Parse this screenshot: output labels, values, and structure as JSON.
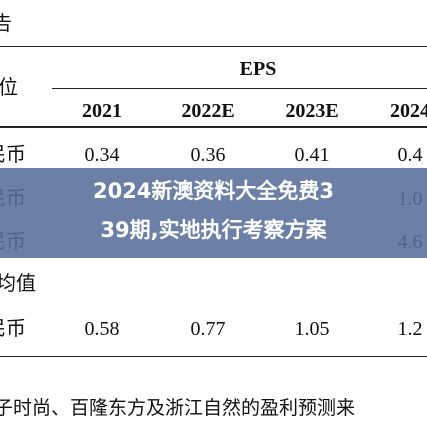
{
  "header": {
    "corner": "告",
    "unit_label": "位",
    "group": "EPS"
  },
  "table": {
    "columns": [
      "2021",
      "2022E",
      "2023E",
      "2024"
    ],
    "rows": [
      {
        "label": "民币",
        "cells": [
          "0.34",
          "0.36",
          "0.41",
          "0.4"
        ]
      },
      {
        "label": "民币",
        "cells": [
          "",
          "",
          "",
          "1.0"
        ]
      },
      {
        "label": "民币",
        "cells": [
          "",
          "",
          "",
          "4.6"
        ]
      },
      {
        "label": "均值",
        "cells": []
      },
      {
        "label": "民币",
        "cells": [
          "0.58",
          "0.77",
          "1.05",
          "1.2"
        ]
      }
    ]
  },
  "footnote": "子时尚、百隆东方及浙江自然的盈利预测来",
  "banner": {
    "line1": "2024新澳资料大全免费3",
    "line2": "39期,实地执行考察方案"
  }
}
